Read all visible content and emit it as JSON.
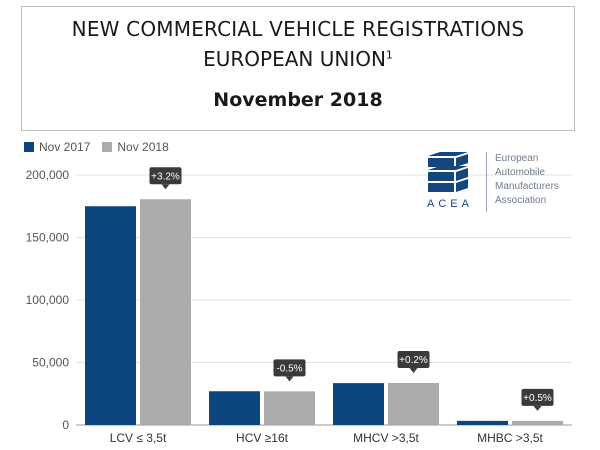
{
  "header": {
    "title_line1": "NEW COMMERCIAL VEHICLE REGISTRATIONS",
    "title_line2": "EUROPEAN UNION",
    "footnote_mark": "1",
    "period": "November 2018"
  },
  "logo": {
    "wordmark": "ACEA",
    "name_lines": [
      "European",
      "Automobile",
      "Manufacturers",
      "Association"
    ],
    "color": "#14477e"
  },
  "chart_data": {
    "type": "bar",
    "categories": [
      "LCV ≤ 3,5t",
      "HCV ≥16t",
      "MHCV >3,5t",
      "MHBC >3,5t"
    ],
    "series": [
      {
        "name": "Nov 2017",
        "color": "#0c4580",
        "values": [
          175000,
          27000,
          33500,
          3300
        ]
      },
      {
        "name": "Nov 2018",
        "color": "#a9abad",
        "values": [
          180600,
          26900,
          33600,
          3300
        ]
      }
    ],
    "change_labels": [
      "+3.2%",
      "-0.5%",
      "+0.2%",
      "+0.5%"
    ],
    "y_ticks": [
      0,
      50000,
      100000,
      150000,
      200000
    ],
    "y_tick_labels": [
      "0",
      "50,000",
      "100,000",
      "150,000",
      "200,000"
    ],
    "ylim": [
      0,
      200000
    ],
    "grid": true,
    "legend_position": "top-left",
    "callout_color": "#3a3a3a"
  }
}
